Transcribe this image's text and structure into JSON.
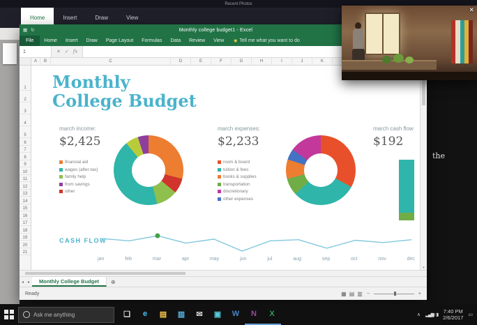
{
  "desktop": {
    "text_fragment": "the"
  },
  "background_app": {
    "titlebar_text": "Recent Photos",
    "tabs": [
      {
        "label": "Home",
        "bg": "#ffffff",
        "fg": "#1e7b46"
      },
      {
        "label": "Insert",
        "bg": "transparent",
        "fg": "#cfd0d6"
      },
      {
        "label": "Draw",
        "bg": "transparent",
        "fg": "#cfd0d6"
      },
      {
        "label": "View",
        "bg": "transparent",
        "fg": "#cfd0d6"
      }
    ]
  },
  "excel": {
    "titlebar": {
      "qat": [
        {
          "glyph": "▦"
        },
        {
          "glyph": "↻"
        }
      ],
      "title": "Monthly college budget1 - Excel",
      "minimize": "—",
      "maximize": "☐",
      "close": "✕"
    },
    "ribbon": {
      "tabs": [
        "File",
        "Home",
        "Insert",
        "Draw",
        "Page Layout",
        "Formulas",
        "Data",
        "Review",
        "View"
      ],
      "bulb": "◉",
      "tell_me": "Tell me what you want to do"
    },
    "formula_bar": {
      "name_box": "1",
      "cancel": "✕",
      "enter": "✓",
      "fx": "fx"
    },
    "grid": {
      "columns": [
        "A",
        "B",
        "C",
        "D",
        "E",
        "F",
        "G",
        "H",
        "I",
        "J",
        "K",
        "L",
        "M",
        "N",
        "O",
        "P"
      ],
      "rows": [
        "1",
        "2",
        "3",
        "4",
        "5",
        "6",
        "7",
        "8",
        "9",
        "10",
        "11",
        "12",
        "13",
        "14",
        "15",
        "16",
        "17",
        "18",
        "19",
        "20",
        "21"
      ]
    },
    "sheet": {
      "title_line1": "Monthly",
      "title_line2": "College Budget",
      "title_color": "#4ab3cc",
      "income": {
        "label": "march income:",
        "value": "$2,425",
        "legend": [
          {
            "label": "financial aid",
            "color": "#ed7d31"
          },
          {
            "label": "wages (after-tax)",
            "color": "#2fb5a9"
          },
          {
            "label": "family help",
            "color": "#8fbf4d"
          },
          {
            "label": "from savings",
            "color": "#8e3f9e"
          },
          {
            "label": "other",
            "color": "#d0342c"
          }
        ],
        "donut": [
          {
            "color": "#ed7d31",
            "pct": 29
          },
          {
            "color": "#d0342c",
            "pct": 7
          },
          {
            "color": "#8fbf4d",
            "pct": 10
          },
          {
            "color": "#2fb5a9",
            "pct": 43
          },
          {
            "color": "#b8cc3a",
            "pct": 6
          },
          {
            "color": "#8e3f9e",
            "pct": 5
          }
        ]
      },
      "expenses": {
        "label": "march expenses:",
        "value": "$2,233",
        "legend": [
          {
            "label": "room & board",
            "color": "#e8502b"
          },
          {
            "label": "tuition & fees",
            "color": "#2fb5a9"
          },
          {
            "label": "books & supplies",
            "color": "#ed7d31"
          },
          {
            "label": "transportation",
            "color": "#70ad47"
          },
          {
            "label": "discretionary",
            "color": "#c2399b"
          },
          {
            "label": "other expenses",
            "color": "#4472c4"
          }
        ],
        "donut": [
          {
            "color": "#e8502b",
            "pct": 33
          },
          {
            "color": "#2fb5a9",
            "pct": 30
          },
          {
            "color": "#70ad47",
            "pct": 8
          },
          {
            "color": "#ed7d31",
            "pct": 9
          },
          {
            "color": "#4472c4",
            "pct": 5
          },
          {
            "color": "#c2399b",
            "pct": 15
          }
        ]
      },
      "cash_summary": {
        "label": "march cash flow",
        "value": "$192"
      },
      "mini_bar": {
        "main_color": "#2fb5a9",
        "base_color": "#70ad47"
      },
      "cashflow_chart": {
        "label": "CASH FLOW",
        "label_color": "#4ab3cc",
        "months": [
          "jan",
          "feb",
          "mar",
          "apr",
          "may",
          "jun",
          "jul",
          "aug",
          "sep",
          "oct",
          "nov",
          "dec"
        ],
        "values": [
          55,
          35,
          80,
          15,
          50,
          -55,
          35,
          45,
          -30,
          40,
          20,
          45
        ],
        "marker_index": 2,
        "line_color": "#82c8dc",
        "marker_color": "#43a047"
      }
    },
    "tabs_bar": {
      "nav_left": "◂",
      "nav_right": "▸",
      "sheet_name": "Monthly College Budget",
      "add": "⊕"
    },
    "status_bar": {
      "ready": "Ready",
      "views": [
        {
          "glyph": "▦"
        },
        {
          "glyph": "▤"
        },
        {
          "glyph": "▥"
        }
      ],
      "zoom_out": "−",
      "zoom_in": "+"
    },
    "scroll": {
      "up": "▴",
      "down": "▾"
    }
  },
  "video_overlay": {
    "close": "✕",
    "shelf_colors": [
      "#b23325",
      "#e8ddc8",
      "#2f9e96",
      "#e0b23a",
      "#7a241c"
    ]
  },
  "taskbar": {
    "search": {
      "placeholder": "Ask me anything"
    },
    "icons": [
      {
        "name": "task-view-button",
        "glyph": "❏",
        "color": "#e0e0e0",
        "underline": "transparent"
      },
      {
        "name": "edge-icon",
        "glyph": "e",
        "color": "#4ec3f2",
        "underline": "transparent"
      },
      {
        "name": "file-explorer-icon",
        "glyph": "▤",
        "color": "#f5c84c",
        "underline": "transparent"
      },
      {
        "name": "store-icon",
        "glyph": "▥",
        "color": "#58b6e8",
        "underline": "transparent"
      },
      {
        "name": "mail-icon",
        "glyph": "✉",
        "color": "#d8d8d8",
        "underline": "transparent"
      },
      {
        "name": "photos-icon",
        "glyph": "▣",
        "color": "#58c8d8",
        "underline": "transparent"
      },
      {
        "name": "word-icon",
        "glyph": "W",
        "color": "#4a82c8",
        "underline": "transparent"
      },
      {
        "name": "onenote-icon",
        "glyph": "N",
        "color": "#9a4a9a",
        "underline": "#6aa1d8"
      },
      {
        "name": "excel-icon",
        "glyph": "X",
        "color": "#2e9e5b",
        "underline": "#6aa1d8"
      }
    ],
    "tray": {
      "caret": "∧",
      "icons": [
        {
          "name": "network-icon",
          "glyph": "▂▄▆"
        },
        {
          "name": "volume-icon",
          "glyph": "◁"
        },
        {
          "name": "battery-icon",
          "glyph": "▮"
        }
      ],
      "time": "7:40 PM",
      "date": "2/6/2017",
      "notification": "▭"
    }
  }
}
